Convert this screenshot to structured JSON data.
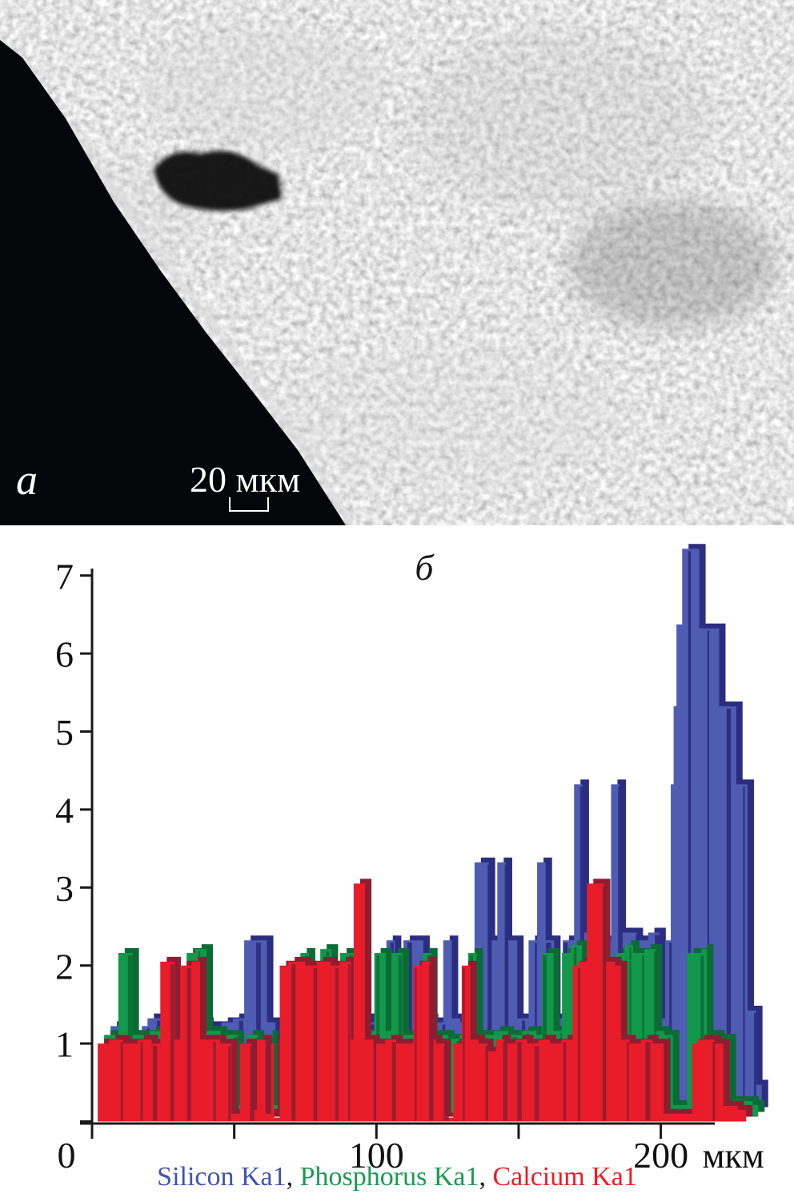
{
  "figure": {
    "panel_a": {
      "label": "a",
      "scale_bar_text": "20 мкм"
    }
  },
  "chart_data": {
    "type": "area",
    "title": "б",
    "x_unit": "мкм",
    "xlim": [
      0,
      232
    ],
    "ylim": [
      0,
      7.3
    ],
    "grid": false,
    "legend_position": "bottom",
    "axis_color": "#1a1a1a",
    "origin_label": "0",
    "x_ticks": [
      {
        "value": 0,
        "label": "0"
      },
      {
        "value": 50,
        "label": ""
      },
      {
        "value": 100,
        "label": "100"
      },
      {
        "value": 150,
        "label": ""
      },
      {
        "value": 200,
        "label": "200"
      }
    ],
    "y_ticks": [
      {
        "value": 1,
        "label": "1"
      },
      {
        "value": 2,
        "label": "2"
      },
      {
        "value": 3,
        "label": "3"
      },
      {
        "value": 4,
        "label": "4"
      },
      {
        "value": 5,
        "label": "5"
      },
      {
        "value": 6,
        "label": "6"
      },
      {
        "value": 7,
        "label": "7"
      }
    ],
    "legend_separator": ",",
    "series": [
      {
        "name": "Silicon Ka1",
        "element": "Si",
        "depth": 2,
        "color": "#4e5cb2",
        "color_dark": "#2b2d80",
        "legend_color": "#4053b2",
        "points": [
          [
            2,
            1.1
          ],
          [
            7,
            1.15
          ],
          [
            9,
            0.15
          ],
          [
            13,
            1.1
          ],
          [
            15,
            1.2
          ],
          [
            20,
            1.15
          ],
          [
            23,
            0.15
          ],
          [
            28,
            1.1
          ],
          [
            32,
            1.15
          ],
          [
            36,
            1.1
          ],
          [
            41,
            1.15
          ],
          [
            45,
            1.2
          ],
          [
            49,
            2.2
          ],
          [
            57,
            1.15
          ],
          [
            60,
            0.2
          ],
          [
            65,
            1.1
          ],
          [
            69,
            1.15
          ],
          [
            74,
            1.1
          ],
          [
            79,
            1.15
          ],
          [
            84,
            1.1
          ],
          [
            88,
            1.2
          ],
          [
            93,
            1.15
          ],
          [
            99,
            2.2
          ],
          [
            102,
            1.2
          ],
          [
            105,
            2.2
          ],
          [
            112,
            1.2
          ],
          [
            115,
            1.15
          ],
          [
            119,
            2.2
          ],
          [
            122,
            1.2
          ],
          [
            125,
            1.15
          ],
          [
            130,
            3.2
          ],
          [
            135,
            2.2
          ],
          [
            138,
            3.2
          ],
          [
            141,
            2.2
          ],
          [
            145,
            1.2
          ],
          [
            149,
            2.2
          ],
          [
            152,
            3.2
          ],
          [
            155,
            2.2
          ],
          [
            158,
            1.2
          ],
          [
            161,
            2.2
          ],
          [
            165,
            4.2
          ],
          [
            168,
            2.3
          ],
          [
            174,
            2.2
          ],
          [
            178,
            4.2
          ],
          [
            181,
            2.3
          ],
          [
            187,
            2.2
          ],
          [
            191,
            2.3
          ],
          [
            195,
            1.2
          ],
          [
            197,
            2.2
          ],
          [
            199,
            4.2
          ],
          [
            200,
            5.2
          ],
          [
            201,
            6.25
          ],
          [
            203,
            7.22
          ],
          [
            209,
            6.2
          ],
          [
            216,
            5.2
          ],
          [
            222,
            4.2
          ],
          [
            226,
            1.3
          ],
          [
            229,
            0.35
          ],
          [
            231,
            0
          ]
        ]
      },
      {
        "name": "Phosphorus Ka1",
        "element": "P",
        "depth": 1,
        "color": "#12984a",
        "color_dark": "#0b6b35",
        "legend_color": "#199a52",
        "points": [
          [
            2,
            1.05
          ],
          [
            7,
            2.1
          ],
          [
            12,
            1.05
          ],
          [
            18,
            1.1
          ],
          [
            24,
            1.05
          ],
          [
            31,
            2.1
          ],
          [
            34,
            2.15
          ],
          [
            38,
            1.1
          ],
          [
            43,
            1.05
          ],
          [
            49,
            0.15
          ],
          [
            52,
            1.05
          ],
          [
            56,
            0.2
          ],
          [
            59,
            1.05
          ],
          [
            61,
            0.15
          ],
          [
            66,
            1.05
          ],
          [
            71,
            2.1
          ],
          [
            74,
            1.1
          ],
          [
            78,
            2.15
          ],
          [
            82,
            1.05
          ],
          [
            85,
            2.1
          ],
          [
            90,
            1.05
          ],
          [
            95,
            1.1
          ],
          [
            97,
            2.1
          ],
          [
            101,
            1.1
          ],
          [
            103,
            2.1
          ],
          [
            107,
            1.05
          ],
          [
            111,
            1.1
          ],
          [
            114,
            2.1
          ],
          [
            117,
            1.05
          ],
          [
            123,
            1.0
          ],
          [
            127,
            1.05
          ],
          [
            130,
            2.1
          ],
          [
            133,
            1.05
          ],
          [
            139,
            1.1
          ],
          [
            144,
            1.05
          ],
          [
            149,
            1.1
          ],
          [
            154,
            1.05
          ],
          [
            156,
            2.1
          ],
          [
            160,
            1.1
          ],
          [
            163,
            2.1
          ],
          [
            166,
            2.2
          ],
          [
            170,
            1.1
          ],
          [
            174,
            1.05
          ],
          [
            178,
            1.1
          ],
          [
            182,
            2.1
          ],
          [
            185,
            2.2
          ],
          [
            188,
            2.1
          ],
          [
            192,
            2.15
          ],
          [
            196,
            1.1
          ],
          [
            199,
            1.05
          ],
          [
            202,
            0.15
          ],
          [
            207,
            2.1
          ],
          [
            212,
            2.15
          ],
          [
            214,
            1.05
          ],
          [
            218,
            1.0
          ],
          [
            222,
            0.2
          ],
          [
            230,
            0.15
          ],
          [
            232,
            0
          ]
        ]
      },
      {
        "name": "Calcium Ka1",
        "element": "Ca",
        "depth": 0,
        "color": "#e91c2a",
        "color_dark": "#8e1d31",
        "legend_color": "#ee1b24",
        "points": [
          [
            2,
            1.0
          ],
          [
            6,
            1.05
          ],
          [
            11,
            1.0
          ],
          [
            16,
            1.05
          ],
          [
            21,
            1.0
          ],
          [
            24,
            2.05
          ],
          [
            29,
            1.05
          ],
          [
            31,
            2.0
          ],
          [
            35,
            2.05
          ],
          [
            38,
            1.05
          ],
          [
            45,
            1.0
          ],
          [
            49,
            0.1
          ],
          [
            52,
            1.0
          ],
          [
            56,
            0.15
          ],
          [
            58,
            1.05
          ],
          [
            61,
            0.1
          ],
          [
            63,
            1.0
          ],
          [
            64,
            0.05
          ],
          [
            66,
            2.0
          ],
          [
            69,
            2.05
          ],
          [
            75,
            2.0
          ],
          [
            79,
            2.05
          ],
          [
            84,
            2.0
          ],
          [
            87,
            2.05
          ],
          [
            91,
            1.05
          ],
          [
            92,
            3.05
          ],
          [
            96,
            1.05
          ],
          [
            99,
            1.0
          ],
          [
            103,
            1.05
          ],
          [
            107,
            1.0
          ],
          [
            113,
            2.0
          ],
          [
            116,
            2.05
          ],
          [
            119,
            1.05
          ],
          [
            121,
            1.0
          ],
          [
            124,
            0.05
          ],
          [
            127,
            1.0
          ],
          [
            130,
            2.0
          ],
          [
            133,
            1.05
          ],
          [
            136,
            1.0
          ],
          [
            139,
            0.9
          ],
          [
            142,
            1.05
          ],
          [
            145,
            1.0
          ],
          [
            149,
            1.05
          ],
          [
            153,
            1.0
          ],
          [
            157,
            1.05
          ],
          [
            161,
            1.0
          ],
          [
            165,
            1.05
          ],
          [
            169,
            2.0
          ],
          [
            171,
            2.05
          ],
          [
            174,
            3.05
          ],
          [
            180,
            2.05
          ],
          [
            184,
            2.0
          ],
          [
            186,
            1.05
          ],
          [
            189,
            1.0
          ],
          [
            193,
            1.05
          ],
          [
            197,
            1.0
          ],
          [
            201,
            0.1
          ],
          [
            211,
            1.0
          ],
          [
            213,
            1.05
          ],
          [
            219,
            1.0
          ],
          [
            222,
            0.2
          ],
          [
            227,
            0.15
          ],
          [
            230,
            0
          ]
        ]
      }
    ]
  }
}
